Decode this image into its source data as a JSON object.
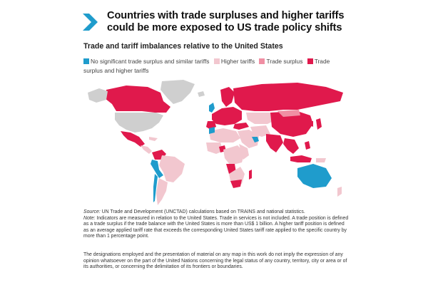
{
  "title": "Countries with trade surpluses and higher tariffs could be more exposed to US trade policy shifts",
  "subtitle": "Trade and tariff imbalances relative to the United States",
  "legend": [
    {
      "label": "No significant trade surplus and similar tariffs",
      "color": "#1f9ccc"
    },
    {
      "label": "Higher tariffs",
      "color": "#f2c7cf"
    },
    {
      "label": "Trade surplus",
      "color": "#f08fa3"
    },
    {
      "label": "Trade surplus and higher tariffs",
      "color": "#e0194c"
    }
  ],
  "colors": {
    "chevron": "#1f9ccc",
    "no_data": "#cfcfcf",
    "neutral": "#1f9ccc",
    "higher_tariffs": "#f2c7cf",
    "trade_surplus": "#f08fa3",
    "both": "#e0194c"
  },
  "note": {
    "source_label": "Source:",
    "source_text": "UN Trade and Development (UNCTAD) calculations based on TRAINS and national statistics.",
    "note_label": "Note:",
    "note_text": "Indicators are measured in relation to the United States. Trade in services is not included. A trade position is defined as a trade surplus if the trade balance with the United States is more than US$ 1 billion. A higher tariff position is defined as an average applied tariff rate that exceeds the corresponding United States tariff rate applied to the specific country by more than 1 percentage point."
  },
  "disclaimer": "The designations employed and the presentation of material on any map in this work do not imply the expression of any opinion whatsoever on the part of the United Nations concerning the legal status of any country, territory, city or area or of its authorities, or concerning the delimitation of its frontiers or boundaries."
}
